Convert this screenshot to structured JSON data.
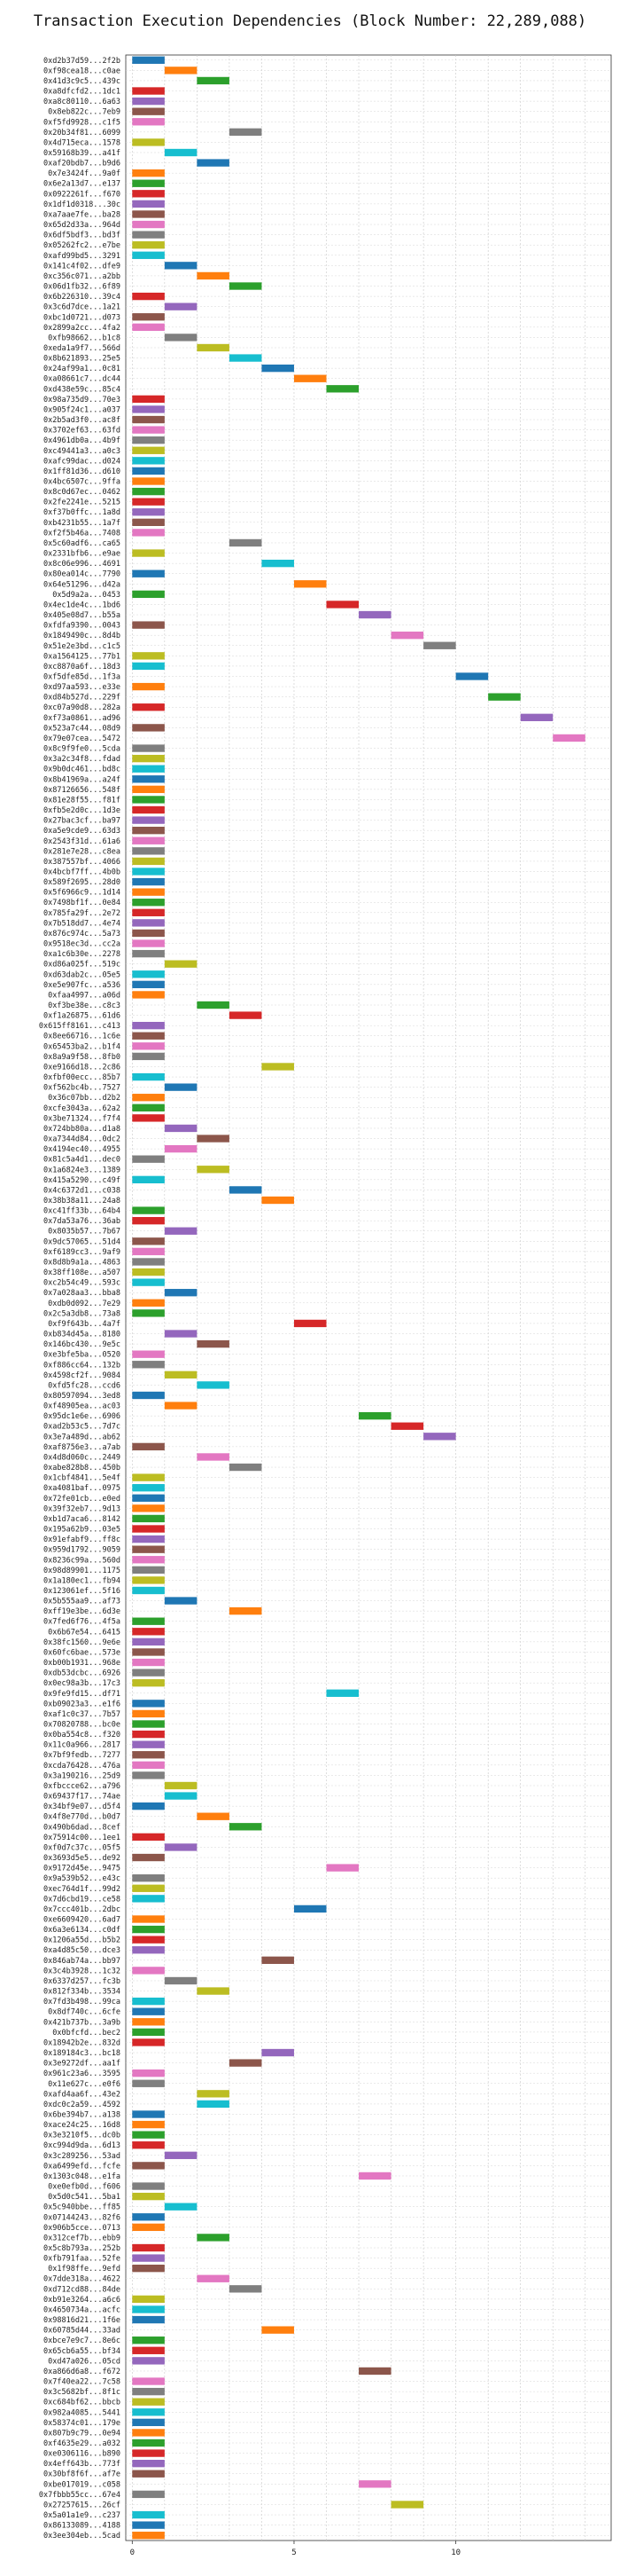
{
  "chart_data": {
    "type": "bar",
    "orientation": "horizontal",
    "title": "Transaction Execution Dependencies (Block Number: 22,289,088)",
    "xlabel": "",
    "ylabel": "",
    "xlim": [
      -0.2,
      14.8
    ],
    "x_ticks": [
      0,
      5,
      10
    ],
    "grid": true,
    "legend": "none",
    "colors": [
      "#1f77b4",
      "#ff7f0e",
      "#2ca02c",
      "#d62728",
      "#9467bd",
      "#8c564b",
      "#e377c2",
      "#7f7f7f",
      "#bcbd22",
      "#17becf"
    ],
    "transactions": [
      [
        "0xd2b37d59...2f2b",
        0
      ],
      [
        "0xf98cea18...c0ae",
        1
      ],
      [
        "0x41d3c9c5...439c",
        2
      ],
      [
        "0xa8dfcfd2...1dc1",
        0
      ],
      [
        "0xa8c80110...6a63",
        0
      ],
      [
        "0x8eb822c...7eb9",
        0
      ],
      [
        "0xf5fd9928...c1f5",
        0
      ],
      [
        "0x20b34f81...6099",
        3
      ],
      [
        "0x4d715eca...1578",
        0
      ],
      [
        "0x59168b39...a41f",
        1
      ],
      [
        "0xaf20bdb7...b9d6",
        2
      ],
      [
        "0x7e3424f...9a0f",
        0
      ],
      [
        "0x6e2a13d7...e137",
        0
      ],
      [
        "0x0922261f...f670",
        0
      ],
      [
        "0x1df1d0318...30c",
        0
      ],
      [
        "0xa7aae7fe...ba28",
        0
      ],
      [
        "0x65d2d33a...964d",
        0
      ],
      [
        "0x6df5bdf3...bd3f",
        0
      ],
      [
        "0x05262fc2...e7be",
        0
      ],
      [
        "0xafd99bd5...3291",
        0
      ],
      [
        "0x141c4f02...dfe9",
        1
      ],
      [
        "0xc356c071...a2bb",
        2
      ],
      [
        "0x06d1fb32...6f89",
        3
      ],
      [
        "0x6b226310...39c4",
        0
      ],
      [
        "0x3c6d7dce...1a21",
        1
      ],
      [
        "0xbc1d0721...d073",
        0
      ],
      [
        "0x2899a2cc...4fa2",
        0
      ],
      [
        "0xfb98662...b1c8",
        1
      ],
      [
        "0xeda1a9f7...566d",
        2
      ],
      [
        "0x8b621893...25e5",
        3
      ],
      [
        "0x24af99a1...0c81",
        4
      ],
      [
        "0xa08661c7...dc44",
        5
      ],
      [
        "0xd438e59c...85c4",
        6
      ],
      [
        "0x98a735d9...70e3",
        0
      ],
      [
        "0x905f24c1...a037",
        0
      ],
      [
        "0x2b5ad3f0...ac8f",
        0
      ],
      [
        "0x3702ef63...63fd",
        0
      ],
      [
        "0x4961db0a...4b9f",
        0
      ],
      [
        "0xc49441a3...a0c3",
        0
      ],
      [
        "0xafc99dac...d024",
        0
      ],
      [
        "0x1ff81d36...d610",
        0
      ],
      [
        "0x4bc6507c...9ffa",
        0
      ],
      [
        "0x8c0d67ec...0462",
        0
      ],
      [
        "0x2fe2241e...5215",
        0
      ],
      [
        "0xf37b0ffc...1a8d",
        0
      ],
      [
        "0xb4231b55...1a7f",
        0
      ],
      [
        "0xf2f5b46a...7408",
        0
      ],
      [
        "0x5c60adf6...ca65",
        3
      ],
      [
        "0x2331bfb6...e9ae",
        0
      ],
      [
        "0x8c06e996...4691",
        4
      ],
      [
        "0x80ea014c...7790",
        0
      ],
      [
        "0x64e51296...d42a",
        5
      ],
      [
        "0x5d9a2a...0453",
        0
      ],
      [
        "0x4ec1de4c...1bd6",
        6
      ],
      [
        "0x405e08d7...b55a",
        7
      ],
      [
        "0xfdfa9390...0043",
        0
      ],
      [
        "0x1849490c...8d4b",
        8
      ],
      [
        "0x51e2e3bd...c1c5",
        9
      ],
      [
        "0xa1564125...77b1",
        0
      ],
      [
        "0xc8870a6f...18d3",
        0
      ],
      [
        "0xf5dfe85d...1f3a",
        10
      ],
      [
        "0xd97aa593...e33e",
        0
      ],
      [
        "0xd84b527d...229f",
        11
      ],
      [
        "0xc07a90d8...282a",
        0
      ],
      [
        "0xf73a0861...ad96",
        12
      ],
      [
        "0x523a7c44...08d9",
        0
      ],
      [
        "0x79e07cea...5472",
        13
      ],
      [
        "0x8c9f9fe0...5cda",
        0
      ],
      [
        "0x3a2c34f8...fdad",
        0
      ],
      [
        "0x9b0dc461...bd8c",
        0
      ],
      [
        "0x8b41969a...a24f",
        0
      ],
      [
        "0x87126656...548f",
        0
      ],
      [
        "0x81e28f55...f81f",
        0
      ],
      [
        "0xfb5e2d0c...1d3e",
        0
      ],
      [
        "0x27bac3cf...ba97",
        0
      ],
      [
        "0xa5e9cde9...63d3",
        0
      ],
      [
        "0x2543f31d...61a6",
        0
      ],
      [
        "0x281e7e28...c8ea",
        0
      ],
      [
        "0x387557bf...4066",
        0
      ],
      [
        "0x4bcbf7ff...4b0b",
        0
      ],
      [
        "0x589f2695...28d0",
        0
      ],
      [
        "0x5f6966c9...1d14",
        0
      ],
      [
        "0x7498bf1f...0e84",
        0
      ],
      [
        "0x785fa29f...2e72",
        0
      ],
      [
        "0x7b518dd7...4e74",
        0
      ],
      [
        "0x876c974c...5a73",
        0
      ],
      [
        "0x9518ec3d...cc2a",
        0
      ],
      [
        "0xa1c6b30e...2278",
        0
      ],
      [
        "0xd86a025f...519c",
        1
      ],
      [
        "0xd63dab2c...05e5",
        0
      ],
      [
        "0xe5e907fc...a536",
        0
      ],
      [
        "0xfaa4997...a06d",
        0
      ],
      [
        "0xf3be38e...c8c3",
        2
      ],
      [
        "0xf1a26875...61d6",
        3
      ],
      [
        "0x615ff8161...c413",
        0
      ],
      [
        "0x8ee66716...1c6e",
        0
      ],
      [
        "0x65453ba2...b1f4",
        0
      ],
      [
        "0x8a9a9f58...8fb0",
        0
      ],
      [
        "0xe9166d18...2c86",
        4
      ],
      [
        "0xfbf00ecc...85b7",
        0
      ],
      [
        "0xf562bc4b...7527",
        1
      ],
      [
        "0x36c07bb...d2b2",
        0
      ],
      [
        "0xcfe3043a...62a2",
        0
      ],
      [
        "0x3be71324...f7f4",
        0
      ],
      [
        "0x724bb80a...d1a8",
        1
      ],
      [
        "0xa7344d84...0dc2",
        2
      ],
      [
        "0x4194ec40...4955",
        1
      ],
      [
        "0x81c5a4d1...dec0",
        0
      ],
      [
        "0x1a6824e3...1389",
        2
      ],
      [
        "0x415a5290...c49f",
        0
      ],
      [
        "0x4c6372d1...c038",
        3
      ],
      [
        "0x38b38a11...24a8",
        4
      ],
      [
        "0xc41ff33b...64b4",
        0
      ],
      [
        "0x7da53a76...36ab",
        0
      ],
      [
        "0x8035b57...7b67",
        1
      ],
      [
        "0x9dc57065...51d4",
        0
      ],
      [
        "0xf6189cc3...9af9",
        0
      ],
      [
        "0x8d8b9a1a...4863",
        0
      ],
      [
        "0x38ff108e...a507",
        0
      ],
      [
        "0xc2b54c49...593c",
        0
      ],
      [
        "0x7a028aa3...bba8",
        1
      ],
      [
        "0xdb0d092...7e29",
        0
      ],
      [
        "0x2c5a3db8...73a8",
        0
      ],
      [
        "0xf9f643b...4a7f",
        5
      ],
      [
        "0xb834d45a...8180",
        1
      ],
      [
        "0x146bc430...9e5c",
        2
      ],
      [
        "0xe3bfe5ba...0520",
        0
      ],
      [
        "0xf886cc64...132b",
        0
      ],
      [
        "0x4598cf2f...9084",
        1
      ],
      [
        "0xfd5fc28...ccd6",
        2
      ],
      [
        "0x80597094...3ed8",
        0
      ],
      [
        "0xf48905ea...ac03",
        1
      ],
      [
        "0x95dc1e6e...6906",
        7
      ],
      [
        "0xad2b53c5...7d7c",
        8
      ],
      [
        "0x3e7a489d...ab62",
        9
      ],
      [
        "0xaf8756e3...a7ab",
        0
      ],
      [
        "0x4d8d060c...2449",
        2
      ],
      [
        "0xabe828b8...450b",
        3
      ],
      [
        "0x1cbf4841...5e4f",
        0
      ],
      [
        "0xa4081baf...0975",
        0
      ],
      [
        "0x72fe01cb...e0ed",
        0
      ],
      [
        "0x39f32eb7...9d13",
        0
      ],
      [
        "0xb1d7aca6...8142",
        0
      ],
      [
        "0x195a62b9...03e5",
        0
      ],
      [
        "0x91efabf9...ff8c",
        0
      ],
      [
        "0x959d1792...9059",
        0
      ],
      [
        "0x8236c99a...560d",
        0
      ],
      [
        "0x98d89901...1175",
        0
      ],
      [
        "0x1a180ec1...fb94",
        0
      ],
      [
        "0x123061ef...5f16",
        0
      ],
      [
        "0x5b555aa9...af73",
        1
      ],
      [
        "0xff19e3be...6d3e",
        3
      ],
      [
        "0x7fed6f76...4f5a",
        0
      ],
      [
        "0x6b67e54...6415",
        0
      ],
      [
        "0x38fc1560...9e6e",
        0
      ],
      [
        "0x60fc6bae...573e",
        0
      ],
      [
        "0xb00b1931...968e",
        0
      ],
      [
        "0xdb53dcbc...6926",
        0
      ],
      [
        "0x0ec98a3b...17c3",
        0
      ],
      [
        "0x9fe9fd15...df71",
        6
      ],
      [
        "0xb09023a3...e1f6",
        0
      ],
      [
        "0xaf1c0c37...7b57",
        0
      ],
      [
        "0x70820788...bc0e",
        0
      ],
      [
        "0x0ba554c8...f320",
        0
      ],
      [
        "0x11c0a966...2817",
        0
      ],
      [
        "0x7bf9fedb...7277",
        0
      ],
      [
        "0xcda76428...476a",
        0
      ],
      [
        "0x3a190216...25d9",
        0
      ],
      [
        "0xfbccce62...a796",
        1
      ],
      [
        "0x69437f17...74ae",
        1
      ],
      [
        "0x34bf9e07...d5f4",
        0
      ],
      [
        "0x4f8e770d...b0d7",
        2
      ],
      [
        "0x490b6dad...8cef",
        3
      ],
      [
        "0x75914c00...1ee1",
        0
      ],
      [
        "0xf0d7c37c...05f5",
        1
      ],
      [
        "0x3693d5e5...de92",
        0
      ],
      [
        "0x9172d45e...9475",
        6
      ],
      [
        "0x9a539b52...e43c",
        0
      ],
      [
        "0xec764d1f...99d2",
        0
      ],
      [
        "0x7d6cbd19...ce58",
        0
      ],
      [
        "0x7ccc401b...2dbc",
        5
      ],
      [
        "0xe6609420...6ad7",
        0
      ],
      [
        "0x6a3e6134...c0df",
        0
      ],
      [
        "0x1206a55d...b5b2",
        0
      ],
      [
        "0xa4d85c50...dce3",
        0
      ],
      [
        "0x846ab74a...bb97",
        4
      ],
      [
        "0x3c4b3928...1c32",
        0
      ],
      [
        "0x6337d257...fc3b",
        1
      ],
      [
        "0x812f334b...3534",
        2
      ],
      [
        "0x7fd3b498...99ca",
        0
      ],
      [
        "0x8df740c...6cfe",
        0
      ],
      [
        "0x421b737b...3a9b",
        0
      ],
      [
        "0x0bfcfd...bec2",
        0
      ],
      [
        "0x18942b2e...832d",
        0
      ],
      [
        "0x189184c3...bc18",
        4
      ],
      [
        "0x3e9272df...aa1f",
        3
      ],
      [
        "0x961c23a6...3595",
        0
      ],
      [
        "0x11e627c...e0f6",
        0
      ],
      [
        "0xafd4aa6f...43e2",
        2
      ],
      [
        "0xdc0c2a59...4592",
        2
      ],
      [
        "0x6be394b7...a138",
        0
      ],
      [
        "0xace24c25...16d8",
        0
      ],
      [
        "0x3e3210f5...dc0b",
        0
      ],
      [
        "0xc994d9da...6d13",
        0
      ],
      [
        "0x3c289256...53ad",
        1
      ],
      [
        "0xa6499efd...fcfe",
        0
      ],
      [
        "0x1303c048...e1fa",
        7
      ],
      [
        "0xe0efb0d...f606",
        0
      ],
      [
        "0x5d0c541...5ba1",
        0
      ],
      [
        "0x5c940bbe...ff85",
        1
      ],
      [
        "0x07144243...82f6",
        0
      ],
      [
        "0x906b5cce...0713",
        0
      ],
      [
        "0x312cef7b...ebb9",
        2
      ],
      [
        "0x5c8b793a...252b",
        0
      ],
      [
        "0xfb791faa...52fe",
        0
      ],
      [
        "0x1f98ffe...9efd",
        0
      ],
      [
        "0x7dde318a...4622",
        2
      ],
      [
        "0xd712cd88...84de",
        3
      ],
      [
        "0xb91e3264...a6c6",
        0
      ],
      [
        "0x4650734a...acfc",
        0
      ],
      [
        "0x98816d21...1f6e",
        0
      ],
      [
        "0x60785d44...33ad",
        4
      ],
      [
        "0xbce7e9c7...8e6c",
        0
      ],
      [
        "0x65cb6a55...bf34",
        0
      ],
      [
        "0xd47a026...05cd",
        0
      ],
      [
        "0xa866d6a8...f672",
        7
      ],
      [
        "0x7f40ea22...7c58",
        0
      ],
      [
        "0x3c5682bf...8f1c",
        0
      ],
      [
        "0xc684bf62...bbcb",
        0
      ],
      [
        "0x982a4085...5441",
        0
      ],
      [
        "0x58374c01...179e",
        0
      ],
      [
        "0x807b9c79...0e94",
        0
      ],
      [
        "0xf4635e29...a032",
        0
      ],
      [
        "0xe0306116...b890",
        0
      ],
      [
        "0x4eff643b...773f",
        0
      ],
      [
        "0x30bf8f6f...af7e",
        0
      ],
      [
        "0xbe017019...c058",
        7
      ],
      [
        "0x7fbbb55cc...67e4",
        0
      ],
      [
        "0x27257615...26cf",
        8
      ],
      [
        "0x5a01a1e9...c237",
        0
      ],
      [
        "0x86133089...4188",
        0
      ],
      [
        "0x3ee304eb...5cad",
        0
      ]
    ]
  }
}
